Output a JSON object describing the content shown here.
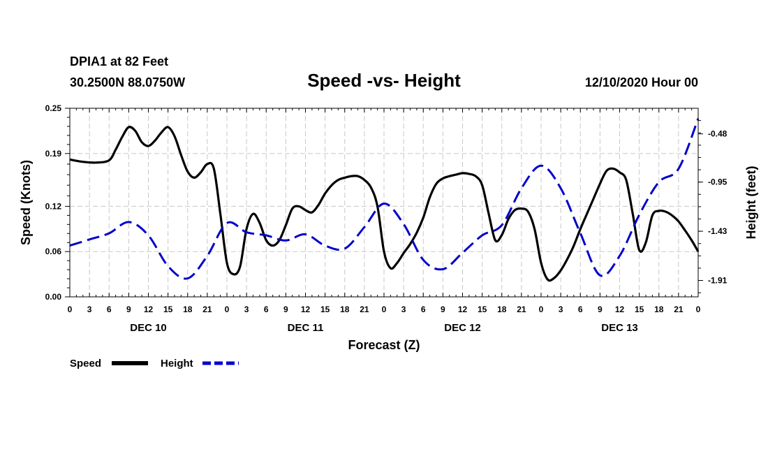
{
  "header": {
    "station": "DPIA1 at 82 Feet",
    "coords": "30.2500N 88.0750W",
    "title": "Speed -vs- Height",
    "run": "12/10/2020 Hour 00"
  },
  "chart_data": {
    "type": "line",
    "title": "Speed -vs- Height",
    "xlabel": "Forecast (Z)",
    "ylabel": "Speed (Knots)",
    "y2label": "Height (feet)",
    "x_hours_range": [
      0,
      96
    ],
    "x_tick_step_hours": 3,
    "x_tick_labels": [
      "0",
      "3",
      "6",
      "9",
      "12",
      "15",
      "18",
      "21",
      "0",
      "3",
      "6",
      "9",
      "12",
      "15",
      "18",
      "21",
      "0",
      "3",
      "6",
      "9",
      "12",
      "15",
      "18",
      "21",
      "0",
      "3",
      "6",
      "9",
      "12",
      "15",
      "18",
      "21",
      "0"
    ],
    "day_labels": [
      {
        "hour": 12,
        "label": "DEC 10"
      },
      {
        "hour": 36,
        "label": "DEC 11"
      },
      {
        "hour": 60,
        "label": "DEC 12"
      },
      {
        "hour": 84,
        "label": "DEC 13"
      }
    ],
    "ylim": [
      0,
      0.25
    ],
    "y_ticks": [
      0.0,
      0.06,
      0.12,
      0.19,
      0.25
    ],
    "y_tick_labels": [
      "0.00",
      "0.06",
      "0.12",
      "0.19",
      "0.25"
    ],
    "y2lim": [
      -2.07,
      -0.23
    ],
    "y2_ticks": [
      -1.91,
      -1.43,
      -0.95,
      -0.48
    ],
    "y2_tick_labels": [
      "-1.91",
      "-1.43",
      "-0.95",
      "-0.48"
    ],
    "grid": true,
    "series": [
      {
        "name": "Speed",
        "axis": "left",
        "color": "#000000",
        "dash": "solid",
        "x": [
          0,
          2,
          4,
          6,
          7,
          8,
          9,
          10,
          11,
          12,
          13,
          14,
          15,
          16,
          17,
          18,
          19,
          20,
          21,
          22,
          23,
          24,
          25,
          26,
          27,
          28,
          29,
          30,
          31,
          32,
          33,
          34,
          35,
          36,
          37,
          38,
          39,
          40,
          41,
          42,
          43,
          44,
          45,
          46,
          47,
          48,
          49,
          50,
          51,
          52,
          53,
          54,
          55,
          56,
          57,
          58,
          59,
          60,
          61,
          62,
          63,
          64,
          65,
          66,
          67,
          68,
          69,
          70,
          71,
          72,
          73,
          74,
          75,
          76,
          77,
          78,
          79,
          80,
          81,
          82,
          83,
          84,
          85,
          86,
          87,
          88,
          89,
          90,
          91,
          92,
          93,
          94,
          95,
          96
        ],
        "y": [
          0.182,
          0.179,
          0.178,
          0.181,
          0.195,
          0.212,
          0.225,
          0.22,
          0.205,
          0.2,
          0.207,
          0.218,
          0.225,
          0.213,
          0.188,
          0.166,
          0.158,
          0.165,
          0.176,
          0.17,
          0.11,
          0.045,
          0.03,
          0.04,
          0.09,
          0.11,
          0.098,
          0.075,
          0.068,
          0.075,
          0.095,
          0.117,
          0.12,
          0.115,
          0.112,
          0.122,
          0.137,
          0.148,
          0.155,
          0.158,
          0.16,
          0.16,
          0.155,
          0.145,
          0.12,
          0.06,
          0.038,
          0.045,
          0.058,
          0.07,
          0.085,
          0.105,
          0.132,
          0.15,
          0.157,
          0.16,
          0.162,
          0.164,
          0.163,
          0.16,
          0.148,
          0.11,
          0.075,
          0.082,
          0.103,
          0.115,
          0.117,
          0.113,
          0.09,
          0.045,
          0.023,
          0.025,
          0.035,
          0.05,
          0.068,
          0.09,
          0.11,
          0.13,
          0.15,
          0.167,
          0.17,
          0.165,
          0.155,
          0.11,
          0.062,
          0.072,
          0.108,
          0.114,
          0.113,
          0.108,
          0.1,
          0.088,
          0.075,
          0.06
        ]
      },
      {
        "name": "Height",
        "axis": "right",
        "color": "#0000cc",
        "dash": "dashed",
        "x": [
          0,
          3,
          6,
          9,
          12,
          15,
          18,
          21,
          24,
          27,
          30,
          33,
          36,
          39,
          42,
          45,
          48,
          51,
          54,
          57,
          60,
          63,
          66,
          69,
          72,
          75,
          78,
          81,
          84,
          87,
          90,
          93,
          96
        ],
        "y": [
          -1.57,
          -1.51,
          -1.45,
          -1.34,
          -1.47,
          -1.77,
          -1.89,
          -1.67,
          -1.35,
          -1.44,
          -1.47,
          -1.52,
          -1.46,
          -1.57,
          -1.6,
          -1.39,
          -1.16,
          -1.36,
          -1.71,
          -1.8,
          -1.64,
          -1.47,
          -1.37,
          -1.01,
          -0.79,
          -1.01,
          -1.45,
          -1.86,
          -1.67,
          -1.27,
          -0.95,
          -0.82,
          -0.33
        ]
      }
    ],
    "legend": [
      {
        "label": "Speed",
        "color": "#000000",
        "dash": "solid"
      },
      {
        "label": "Height",
        "color": "#0000cc",
        "dash": "dashed"
      }
    ],
    "legend_position": "bottom-left"
  }
}
